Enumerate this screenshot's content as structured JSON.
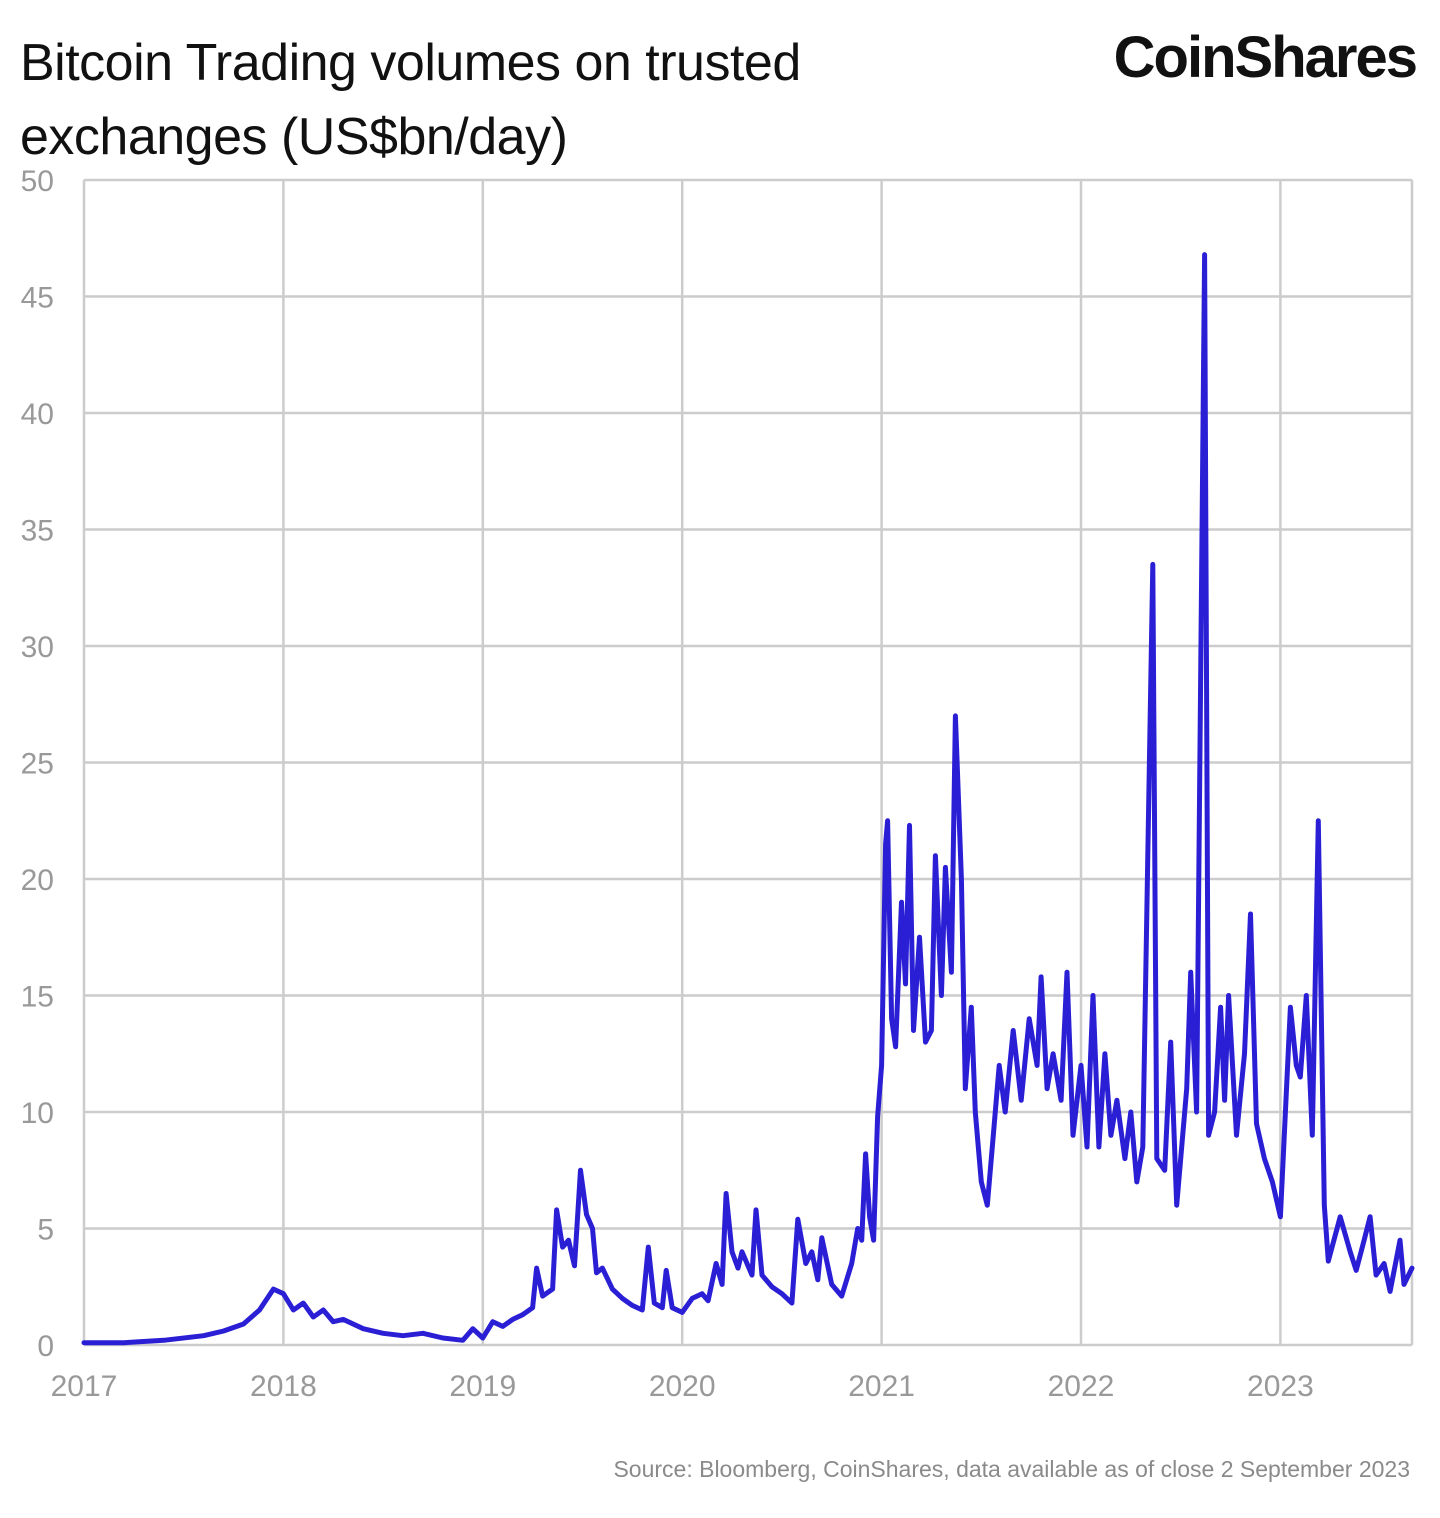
{
  "header": {
    "title": "Bitcoin Trading volumes on trusted exchanges (US$bn/day)",
    "logo_text": "CoinShares"
  },
  "footer": {
    "source": "Source: Bloomberg, CoinShares, data available as of close 2 September 2023"
  },
  "colors": {
    "line": "#2b1fd6",
    "grid": "#cccccc",
    "axis_text": "#999999"
  },
  "chart_data": {
    "type": "line",
    "title": "Bitcoin Trading volumes on trusted exchanges (US$bn/day)",
    "xlabel": "",
    "ylabel": "",
    "xlim": [
      2017.0,
      2023.66
    ],
    "ylim": [
      0,
      50
    ],
    "x_ticks": [
      2017,
      2018,
      2019,
      2020,
      2021,
      2022,
      2023
    ],
    "x_tick_labels": [
      "2017",
      "2018",
      "2019",
      "2020",
      "2021",
      "2022",
      "2023"
    ],
    "y_ticks": [
      0,
      5,
      10,
      15,
      20,
      25,
      30,
      35,
      40,
      45,
      50
    ],
    "y_tick_labels": [
      "0",
      "5",
      "10",
      "15",
      "20",
      "25",
      "30",
      "35",
      "40",
      "45",
      "50"
    ],
    "grid": true,
    "legend": "none",
    "series": [
      {
        "points": [
          [
            2017.0,
            0.1
          ],
          [
            2017.2,
            0.1
          ],
          [
            2017.4,
            0.2
          ],
          [
            2017.6,
            0.4
          ],
          [
            2017.7,
            0.6
          ],
          [
            2017.8,
            0.9
          ],
          [
            2017.88,
            1.5
          ],
          [
            2017.95,
            2.4
          ],
          [
            2018.0,
            2.2
          ],
          [
            2018.05,
            1.5
          ],
          [
            2018.1,
            1.8
          ],
          [
            2018.15,
            1.2
          ],
          [
            2018.2,
            1.5
          ],
          [
            2018.25,
            1.0
          ],
          [
            2018.3,
            1.1
          ],
          [
            2018.4,
            0.7
          ],
          [
            2018.5,
            0.5
          ],
          [
            2018.6,
            0.4
          ],
          [
            2018.7,
            0.5
          ],
          [
            2018.8,
            0.3
          ],
          [
            2018.9,
            0.2
          ],
          [
            2018.95,
            0.7
          ],
          [
            2019.0,
            0.3
          ],
          [
            2019.05,
            1.0
          ],
          [
            2019.1,
            0.8
          ],
          [
            2019.15,
            1.1
          ],
          [
            2019.2,
            1.3
          ],
          [
            2019.25,
            1.6
          ],
          [
            2019.27,
            3.3
          ],
          [
            2019.3,
            2.1
          ],
          [
            2019.35,
            2.4
          ],
          [
            2019.37,
            5.8
          ],
          [
            2019.4,
            4.2
          ],
          [
            2019.43,
            4.5
          ],
          [
            2019.46,
            3.4
          ],
          [
            2019.49,
            7.5
          ],
          [
            2019.52,
            5.6
          ],
          [
            2019.55,
            5.0
          ],
          [
            2019.57,
            3.1
          ],
          [
            2019.6,
            3.3
          ],
          [
            2019.65,
            2.4
          ],
          [
            2019.7,
            2.0
          ],
          [
            2019.75,
            1.7
          ],
          [
            2019.8,
            1.5
          ],
          [
            2019.83,
            4.2
          ],
          [
            2019.86,
            1.8
          ],
          [
            2019.9,
            1.6
          ],
          [
            2019.92,
            3.2
          ],
          [
            2019.95,
            1.6
          ],
          [
            2020.0,
            1.4
          ],
          [
            2020.05,
            2.0
          ],
          [
            2020.1,
            2.2
          ],
          [
            2020.13,
            1.9
          ],
          [
            2020.17,
            3.5
          ],
          [
            2020.2,
            2.6
          ],
          [
            2020.22,
            6.5
          ],
          [
            2020.25,
            4.0
          ],
          [
            2020.28,
            3.3
          ],
          [
            2020.3,
            4.0
          ],
          [
            2020.35,
            3.0
          ],
          [
            2020.37,
            5.8
          ],
          [
            2020.4,
            3.0
          ],
          [
            2020.45,
            2.5
          ],
          [
            2020.5,
            2.2
          ],
          [
            2020.55,
            1.8
          ],
          [
            2020.58,
            5.4
          ],
          [
            2020.62,
            3.5
          ],
          [
            2020.65,
            4.0
          ],
          [
            2020.68,
            2.8
          ],
          [
            2020.7,
            4.6
          ],
          [
            2020.75,
            2.6
          ],
          [
            2020.8,
            2.1
          ],
          [
            2020.85,
            3.5
          ],
          [
            2020.88,
            5.0
          ],
          [
            2020.9,
            4.5
          ],
          [
            2020.92,
            8.2
          ],
          [
            2020.94,
            5.5
          ],
          [
            2020.96,
            4.5
          ],
          [
            2020.98,
            9.8
          ],
          [
            2021.0,
            12.0
          ],
          [
            2021.02,
            21.5
          ],
          [
            2021.03,
            22.5
          ],
          [
            2021.05,
            14.0
          ],
          [
            2021.07,
            12.8
          ],
          [
            2021.1,
            19.0
          ],
          [
            2021.12,
            15.5
          ],
          [
            2021.14,
            22.3
          ],
          [
            2021.16,
            13.5
          ],
          [
            2021.19,
            17.5
          ],
          [
            2021.22,
            13.0
          ],
          [
            2021.25,
            13.5
          ],
          [
            2021.27,
            21.0
          ],
          [
            2021.3,
            15.0
          ],
          [
            2021.32,
            20.5
          ],
          [
            2021.35,
            16.0
          ],
          [
            2021.37,
            27.0
          ],
          [
            2021.4,
            20.0
          ],
          [
            2021.42,
            11.0
          ],
          [
            2021.45,
            14.5
          ],
          [
            2021.47,
            10.0
          ],
          [
            2021.5,
            7.0
          ],
          [
            2021.53,
            6.0
          ],
          [
            2021.56,
            9.0
          ],
          [
            2021.59,
            12.0
          ],
          [
            2021.62,
            10.0
          ],
          [
            2021.66,
            13.5
          ],
          [
            2021.7,
            10.5
          ],
          [
            2021.74,
            14.0
          ],
          [
            2021.78,
            12.0
          ],
          [
            2021.8,
            15.8
          ],
          [
            2021.83,
            11.0
          ],
          [
            2021.86,
            12.5
          ],
          [
            2021.9,
            10.5
          ],
          [
            2021.93,
            16.0
          ],
          [
            2021.96,
            9.0
          ],
          [
            2022.0,
            12.0
          ],
          [
            2022.03,
            8.5
          ],
          [
            2022.06,
            15.0
          ],
          [
            2022.09,
            8.5
          ],
          [
            2022.12,
            12.5
          ],
          [
            2022.15,
            9.0
          ],
          [
            2022.18,
            10.5
          ],
          [
            2022.22,
            8.0
          ],
          [
            2022.25,
            10.0
          ],
          [
            2022.28,
            7.0
          ],
          [
            2022.31,
            8.5
          ],
          [
            2022.36,
            33.5
          ],
          [
            2022.38,
            8.0
          ],
          [
            2022.42,
            7.5
          ],
          [
            2022.45,
            13.0
          ],
          [
            2022.48,
            6.0
          ],
          [
            2022.5,
            8.0
          ],
          [
            2022.53,
            11.0
          ],
          [
            2022.55,
            16.0
          ],
          [
            2022.58,
            10.0
          ],
          [
            2022.62,
            46.8
          ],
          [
            2022.64,
            9.0
          ],
          [
            2022.67,
            10.0
          ],
          [
            2022.7,
            14.5
          ],
          [
            2022.72,
            10.5
          ],
          [
            2022.74,
            15.0
          ],
          [
            2022.78,
            9.0
          ],
          [
            2022.82,
            12.5
          ],
          [
            2022.85,
            18.5
          ],
          [
            2022.88,
            9.5
          ],
          [
            2022.92,
            8.0
          ],
          [
            2022.96,
            7.0
          ],
          [
            2023.0,
            5.5
          ],
          [
            2023.05,
            14.5
          ],
          [
            2023.08,
            12.0
          ],
          [
            2023.1,
            11.5
          ],
          [
            2023.13,
            15.0
          ],
          [
            2023.16,
            9.0
          ],
          [
            2023.19,
            22.5
          ],
          [
            2023.22,
            6.0
          ],
          [
            2023.24,
            3.6
          ],
          [
            2023.3,
            5.5
          ],
          [
            2023.35,
            4.0
          ],
          [
            2023.38,
            3.2
          ],
          [
            2023.42,
            4.5
          ],
          [
            2023.45,
            5.5
          ],
          [
            2023.48,
            3.0
          ],
          [
            2023.52,
            3.5
          ],
          [
            2023.55,
            2.3
          ],
          [
            2023.6,
            4.5
          ],
          [
            2023.62,
            2.6
          ],
          [
            2023.66,
            3.3
          ]
        ]
      }
    ]
  }
}
